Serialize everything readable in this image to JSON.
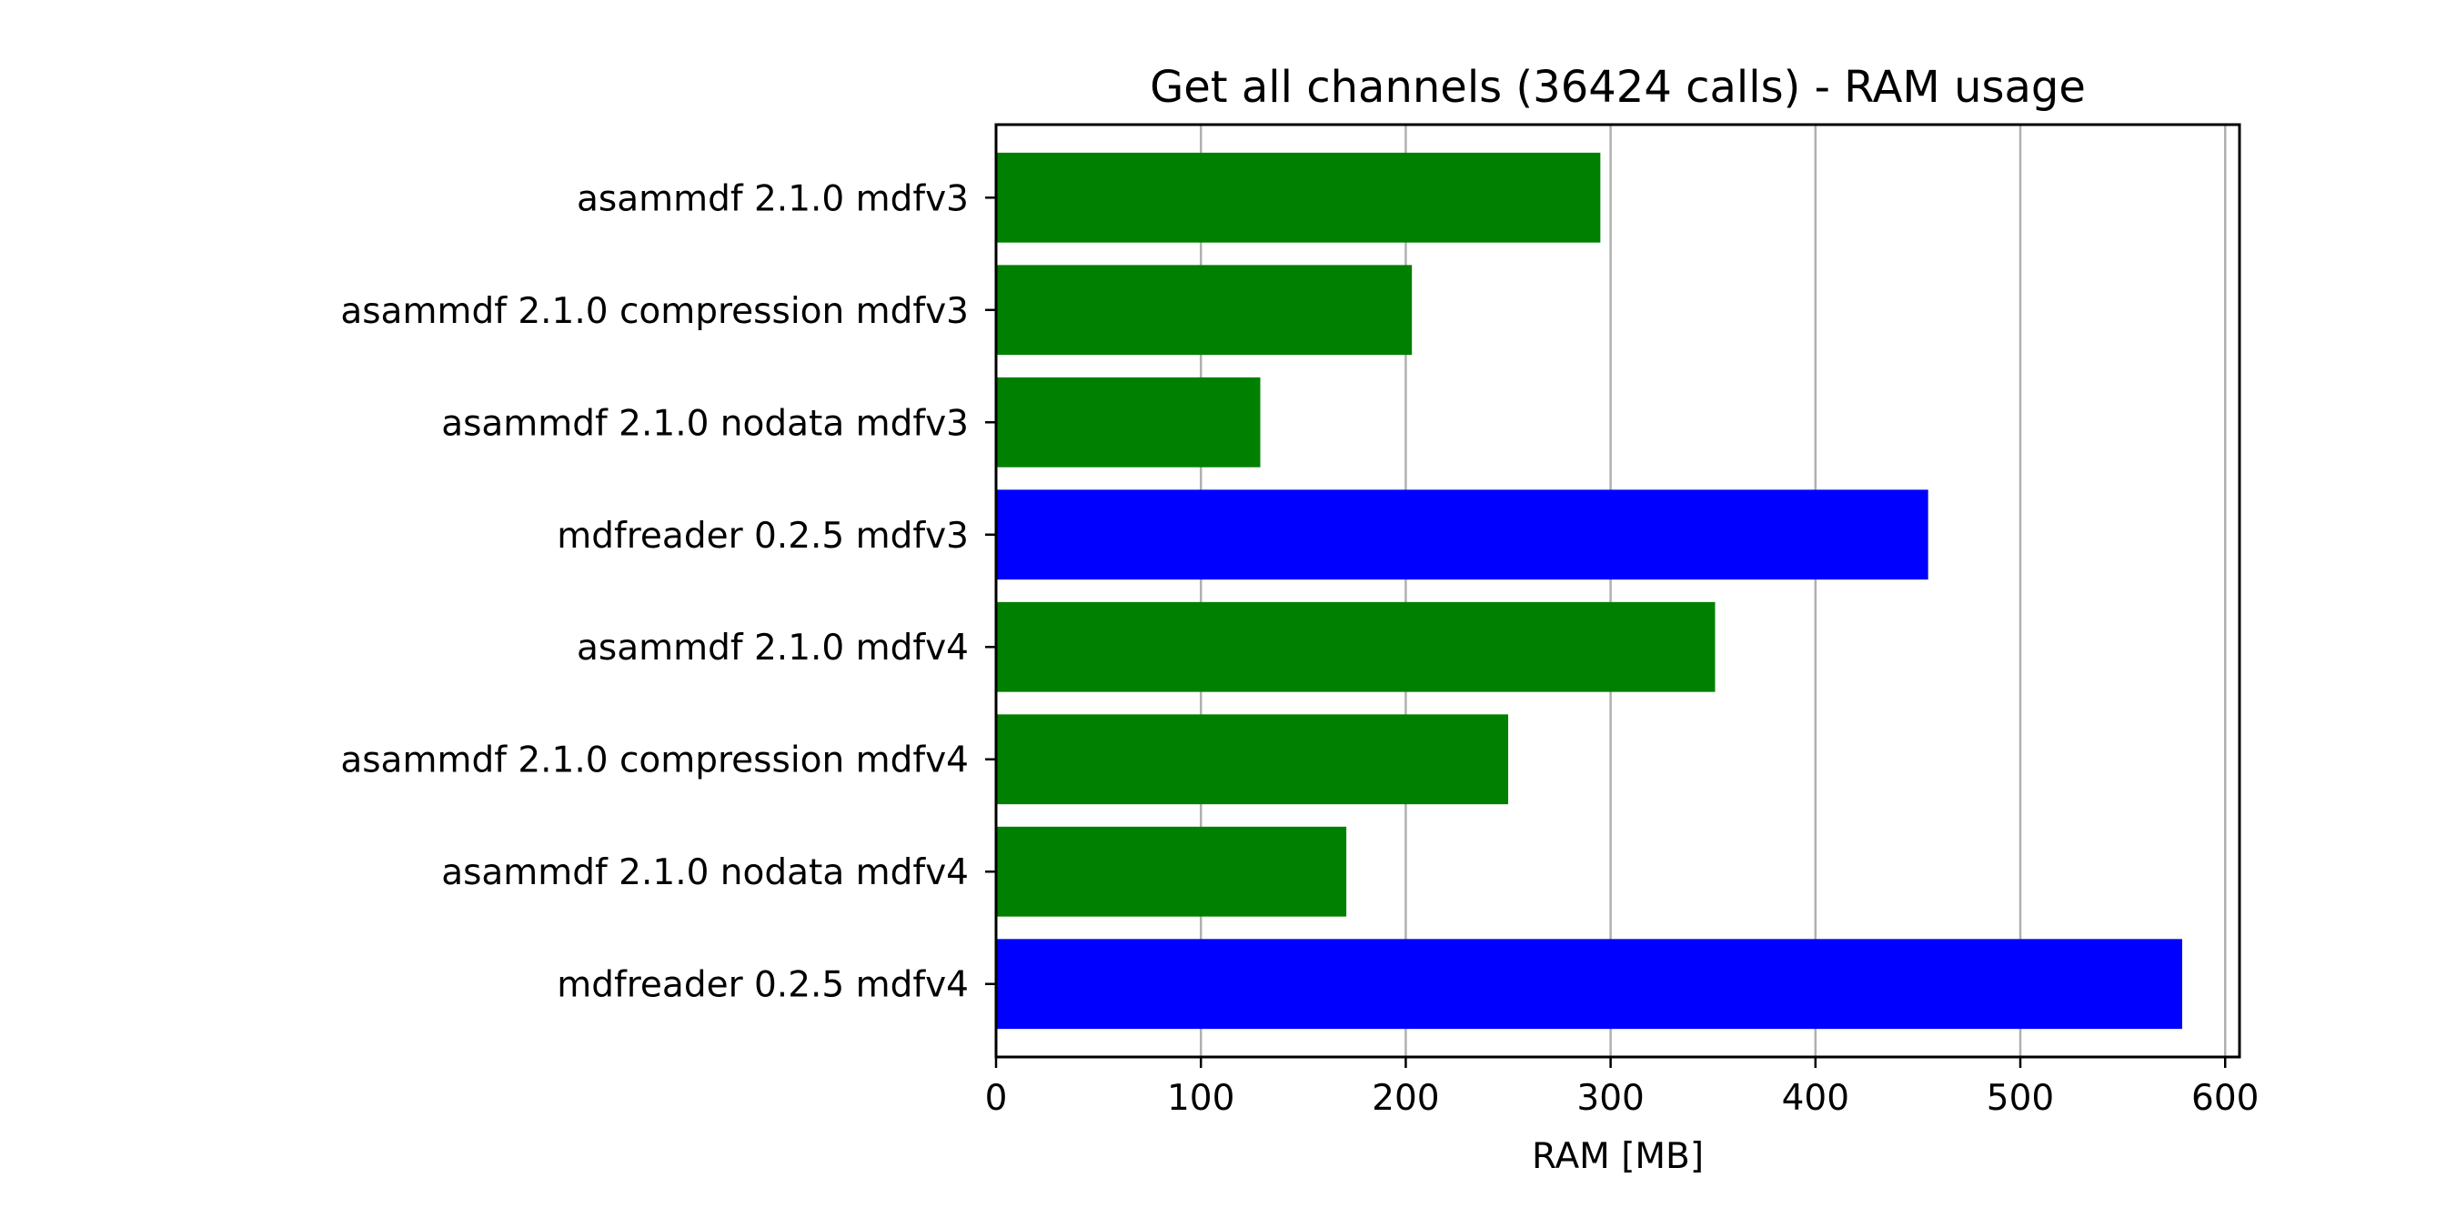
{
  "chart_data": {
    "type": "bar",
    "orientation": "horizontal",
    "title": "Get all channels (36424 calls) - RAM usage",
    "xlabel": "RAM [MB]",
    "ylabel": "",
    "categories": [
      "asammdf 2.1.0 mdfv3",
      "asammdf 2.1.0 compression mdfv3",
      "asammdf 2.1.0 nodata mdfv3",
      "mdfreader 0.2.5 mdfv3",
      "asammdf 2.1.0 mdfv4",
      "asammdf 2.1.0 compression mdfv4",
      "asammdf 2.1.0 nodata mdfv4",
      "mdfreader 0.2.5 mdfv4"
    ],
    "values": [
      295,
      203,
      129,
      455,
      351,
      250,
      171,
      579
    ],
    "colors": [
      "#008000",
      "#008000",
      "#008000",
      "#0000ff",
      "#008000",
      "#008000",
      "#008000",
      "#0000ff"
    ],
    "xlim": [
      0,
      607
    ],
    "xticks": [
      0,
      100,
      200,
      300,
      400,
      500,
      600
    ],
    "grid": "vertical",
    "legend": "none"
  }
}
